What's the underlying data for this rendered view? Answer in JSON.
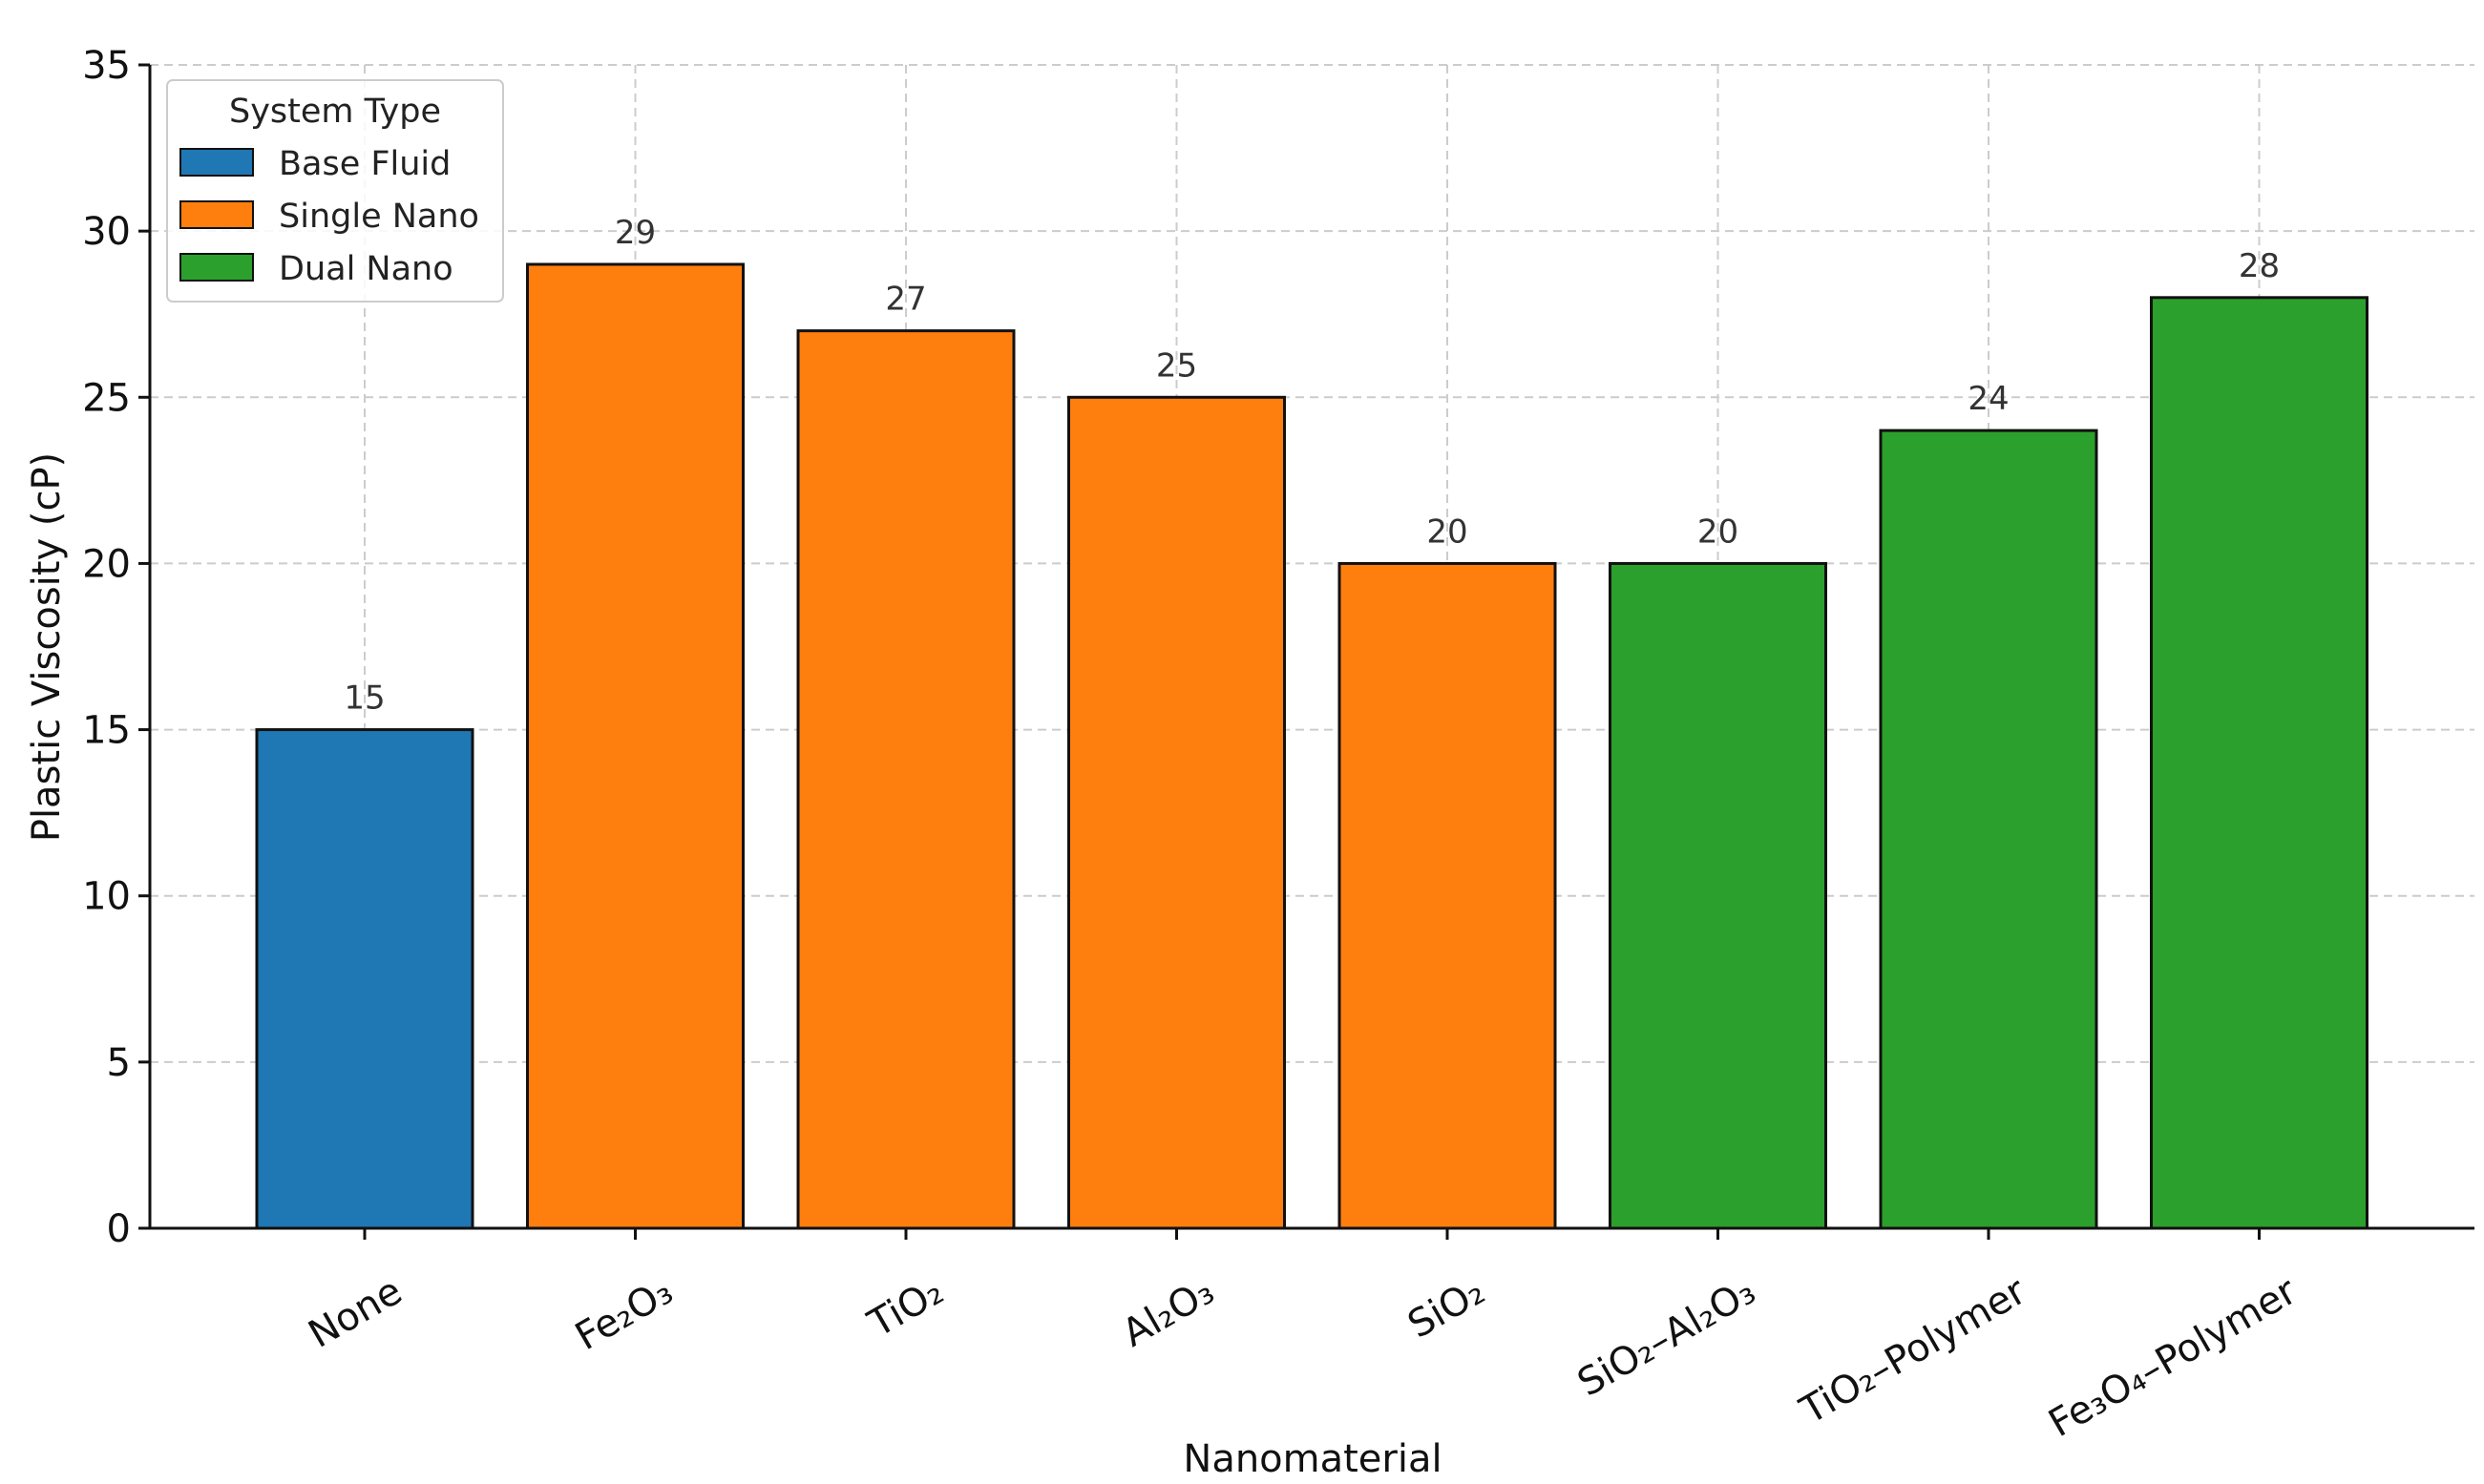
{
  "chart_data": {
    "type": "bar",
    "xlabel": "Nanomaterial",
    "ylabel": "Plastic Viscosity (cP)",
    "ylim": [
      0,
      35
    ],
    "yticks": [
      0,
      5,
      10,
      15,
      20,
      25,
      30,
      35
    ],
    "grid": true,
    "legend": {
      "title": "System Type",
      "placement": "top-left",
      "entries": [
        {
          "label": "Base Fluid",
          "color": "#1f77b4"
        },
        {
          "label": "Single Nano",
          "color": "#ff7f0e"
        },
        {
          "label": "Dual Nano",
          "color": "#2ca02c"
        }
      ]
    },
    "categories": [
      "None",
      "Fe₂O₃",
      "TiO₂",
      "Al₂O₃",
      "SiO₂",
      "SiO₂–Al₂O₃",
      "TiO₂–Polymer",
      "Fe₃O₄–Polymer"
    ],
    "values": [
      15,
      29,
      27,
      25,
      20,
      20,
      24,
      28
    ],
    "groups": [
      "Base Fluid",
      "Single Nano",
      "Single Nano",
      "Single Nano",
      "Single Nano",
      "Dual Nano",
      "Dual Nano",
      "Dual Nano"
    ]
  }
}
